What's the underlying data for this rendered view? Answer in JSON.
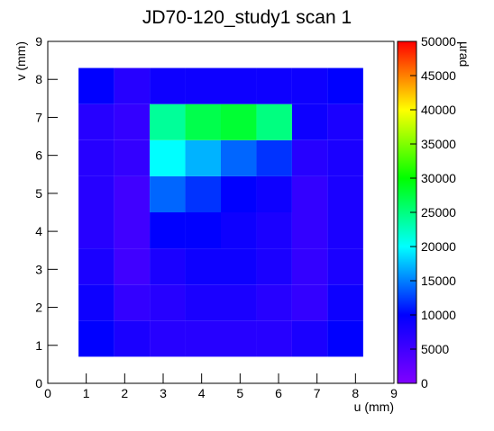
{
  "chart_data": {
    "type": "heatmap",
    "title": "JD70-120_study1 scan 1",
    "x_label": "u (mm)",
    "y_label": "v (mm)",
    "z_label": "µrad",
    "xlim": [
      0,
      9
    ],
    "ylim": [
      0,
      9
    ],
    "zlim": [
      0,
      50000
    ],
    "xticks": [
      0,
      1,
      2,
      3,
      4,
      5,
      6,
      7,
      8,
      9
    ],
    "yticks": [
      0,
      1,
      2,
      3,
      4,
      5,
      6,
      7,
      8,
      9
    ],
    "zticks": [
      0,
      5000,
      10000,
      15000,
      20000,
      25000,
      30000,
      35000,
      40000,
      45000,
      50000
    ],
    "palette": [
      "#8000ff",
      "#0000ff",
      "#00ffff",
      "#00ff00",
      "#ffff00",
      "#ff0000"
    ],
    "xbins": [
      0.8,
      1.725,
      2.65,
      3.575,
      4.5,
      5.425,
      6.35,
      7.275,
      8.2
    ],
    "ybins": [
      0.7,
      1.65,
      2.6,
      3.55,
      4.5,
      5.45,
      6.4,
      7.35,
      8.3
    ],
    "z": [
      [
        10000,
        8000,
        7000,
        7000,
        7000,
        7000,
        8000,
        10000
      ],
      [
        9000,
        6000,
        7000,
        8000,
        8000,
        7000,
        6000,
        9000
      ],
      [
        8000,
        5000,
        8000,
        9000,
        9000,
        8000,
        6000,
        8000
      ],
      [
        7000,
        5000,
        10000,
        10000,
        9000,
        8000,
        6000,
        8000
      ],
      [
        7000,
        5000,
        14000,
        12000,
        10000,
        9000,
        6000,
        8000
      ],
      [
        7000,
        6000,
        20000,
        17000,
        14000,
        12000,
        7000,
        8000
      ],
      [
        7000,
        6000,
        24000,
        27000,
        28000,
        25000,
        9000,
        8000
      ],
      [
        10000,
        7000,
        9000,
        9000,
        9000,
        9000,
        9000,
        10000
      ]
    ]
  }
}
